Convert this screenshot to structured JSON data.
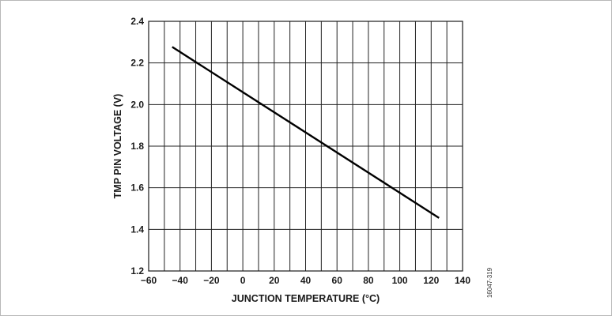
{
  "chart_data": {
    "type": "line",
    "title": "",
    "xlabel": "JUNCTION TEMPERATURE (°C)",
    "ylabel": "TMP PIN VOLTAGE (V)",
    "xlim": [
      -60,
      140
    ],
    "ylim": [
      1.2,
      2.4
    ],
    "x_ticks": [
      -60,
      -40,
      -20,
      0,
      20,
      40,
      60,
      80,
      100,
      120,
      140
    ],
    "x_tick_labels": [
      "−60",
      "−40",
      "−20",
      "0",
      "20",
      "40",
      "60",
      "80",
      "100",
      "120",
      "140"
    ],
    "y_ticks": [
      1.2,
      1.4,
      1.6,
      1.8,
      2.0,
      2.2,
      2.4
    ],
    "y_tick_labels": [
      "1.2",
      "1.4",
      "1.6",
      "1.8",
      "2.0",
      "2.2",
      "2.4"
    ],
    "x_minor_grid": [
      -50,
      -30,
      -10,
      10,
      30,
      50,
      70,
      90,
      110,
      130
    ],
    "grid": true,
    "series": [
      {
        "x": [
          -45,
          125
        ],
        "y": [
          2.277,
          1.455
        ]
      }
    ],
    "figure_id": "16047-319",
    "colors": {
      "line": "#000000",
      "grid": "#222222"
    }
  }
}
